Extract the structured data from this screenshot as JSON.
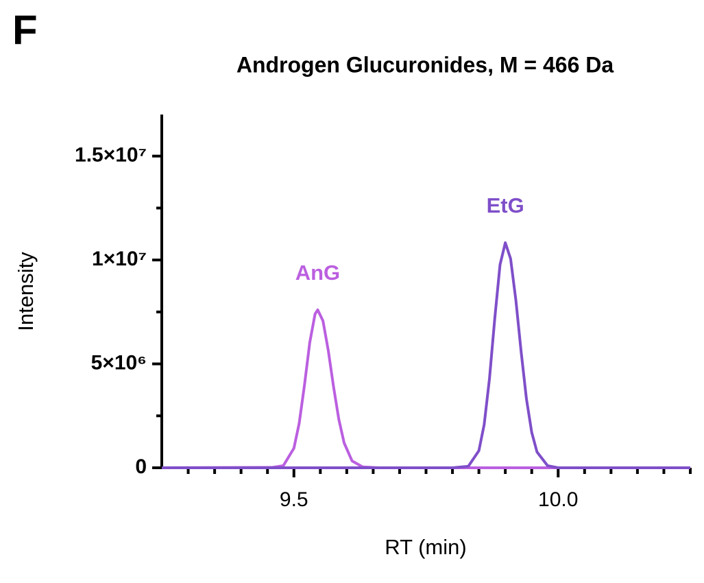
{
  "chart_data": {
    "type": "line",
    "panel": "F",
    "title": "Androgen Glucuronides, M = 466 Da",
    "x_label": "RT (min)",
    "y_label": "Intensity",
    "xlim": [
      9.25,
      10.25
    ],
    "ylim": [
      0,
      17000000
    ],
    "xticks": [
      9.5,
      {
        "value": 10,
        "label": "10.0"
      }
    ],
    "xminorticks": [
      9.3,
      9.35,
      9.4,
      9.45,
      9.55,
      9.6,
      9.65,
      9.7,
      9.75,
      9.8,
      9.85,
      9.9,
      9.95,
      10.05,
      10.1,
      10.15,
      10.2,
      10.25
    ],
    "yticks": [
      0,
      {
        "value": 5000000,
        "label": "5×10⁶"
      },
      {
        "value": 10000000,
        "label": "1×10⁷"
      },
      {
        "value": 15000000,
        "label": "1.5×10⁷"
      }
    ],
    "yminorticks": [
      2500000,
      7500000,
      12500000
    ],
    "series": [
      {
        "name": "AnG",
        "color": "#bb5fe0",
        "x": [
          9.25,
          9.46,
          9.48,
          9.5,
          9.51,
          9.52,
          9.53,
          9.54,
          9.545,
          9.555,
          9.565,
          9.575,
          9.585,
          9.595,
          9.61,
          9.63,
          9.66,
          10.25
        ],
        "values": [
          0,
          20000,
          100000,
          940000,
          2140000,
          3980000,
          6030000,
          7400000,
          7600000,
          7070000,
          5650000,
          3900000,
          2330000,
          1200000,
          330000,
          40000,
          0,
          0
        ]
      },
      {
        "name": "EtG",
        "color": "#7f4fc9",
        "x": [
          9.25,
          9.8,
          9.83,
          9.85,
          9.86,
          9.87,
          9.88,
          9.89,
          9.9,
          9.91,
          9.92,
          9.93,
          9.94,
          9.95,
          9.96,
          9.98,
          10.0,
          10.25
        ],
        "values": [
          0,
          0,
          70000,
          820000,
          2080000,
          4280000,
          7170000,
          9770000,
          10830000,
          10060000,
          8060000,
          5570000,
          3310000,
          1700000,
          760000,
          100000,
          0,
          0
        ]
      }
    ]
  }
}
